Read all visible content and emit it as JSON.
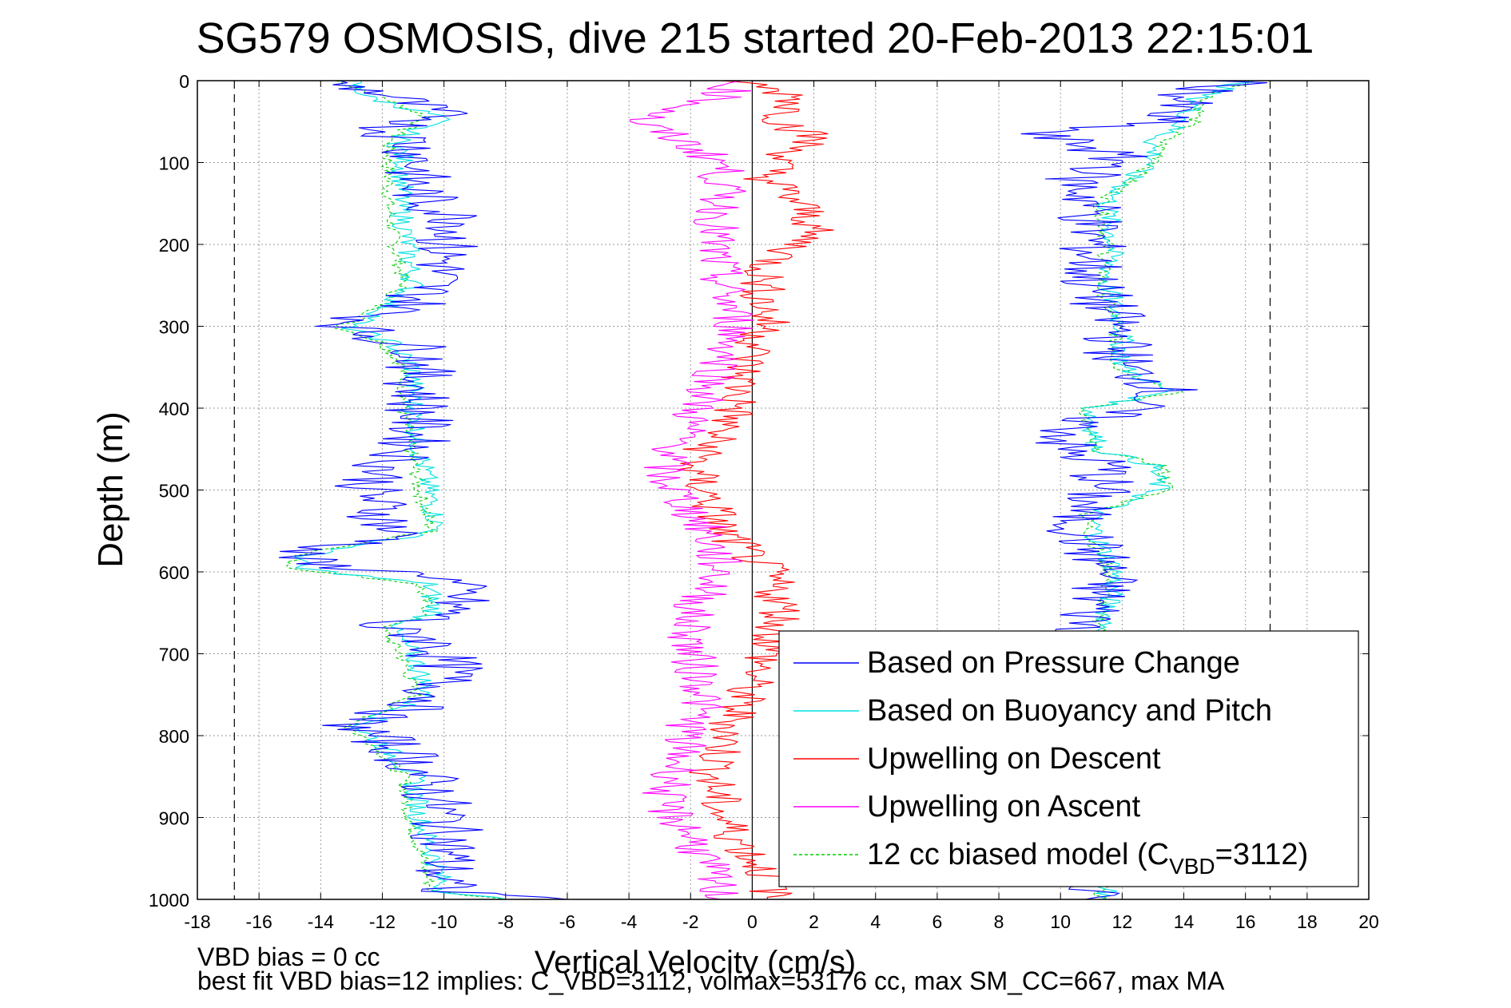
{
  "chart_data": {
    "type": "line",
    "title": "SG579 OSMOSIS, dive 215 started 20-Feb-2013 22:15:01",
    "xlabel": "Vertical Velocity (cm/s)",
    "ylabel": "Depth (m)",
    "xlim": [
      -18,
      20
    ],
    "ylim": [
      0,
      1000
    ],
    "y_reversed": true,
    "grid": true,
    "legend_position": "bottom-right",
    "x_ticks": [
      "-18",
      "-16",
      "-14",
      "-12",
      "-10",
      "-8",
      "-6",
      "-4",
      "-2",
      "0",
      "2",
      "4",
      "6",
      "8",
      "10",
      "12",
      "14",
      "16",
      "18",
      "20"
    ],
    "y_ticks": [
      "0",
      "100",
      "200",
      "300",
      "400",
      "500",
      "600",
      "700",
      "800",
      "900",
      "1000"
    ],
    "reference_lines": {
      "x_zero": 0,
      "dashed_limits": [
        -16.8,
        16.8
      ]
    },
    "series": [
      {
        "name": "Based on Pressure Change",
        "color": "#0000ff",
        "style": "solid",
        "descent": [
          [
            0,
            -14
          ],
          [
            15,
            -12
          ],
          [
            30,
            -11
          ],
          [
            45,
            -10
          ],
          [
            60,
            -12
          ],
          [
            75,
            -11
          ],
          [
            100,
            -10.8
          ],
          [
            125,
            -11
          ],
          [
            150,
            -10.5
          ],
          [
            175,
            -9.3
          ],
          [
            200,
            -10
          ],
          [
            225,
            -10
          ],
          [
            250,
            -10.5
          ],
          [
            275,
            -11
          ],
          [
            290,
            -12.5
          ],
          [
            300,
            -13
          ],
          [
            315,
            -12
          ],
          [
            330,
            -10.5
          ],
          [
            350,
            -10.8
          ],
          [
            400,
            -10.8
          ],
          [
            450,
            -11
          ],
          [
            470,
            -11.8
          ],
          [
            500,
            -12.5
          ],
          [
            530,
            -12
          ],
          [
            560,
            -11.5
          ],
          [
            575,
            -14.8
          ],
          [
            590,
            -14.5
          ],
          [
            605,
            -10
          ],
          [
            630,
            -9.5
          ],
          [
            655,
            -10
          ],
          [
            665,
            -12.5
          ],
          [
            680,
            -10.5
          ],
          [
            720,
            -9.8
          ],
          [
            760,
            -10.5
          ],
          [
            785,
            -13
          ],
          [
            800,
            -12.3
          ],
          [
            820,
            -11.3
          ],
          [
            860,
            -10.5
          ],
          [
            900,
            -10
          ],
          [
            940,
            -9.8
          ],
          [
            970,
            -10.1
          ],
          [
            990,
            -10
          ],
          [
            1000,
            -6
          ]
        ],
        "ascent": [
          [
            0,
            15.8
          ],
          [
            20,
            14
          ],
          [
            50,
            13
          ],
          [
            65,
            9
          ],
          [
            80,
            11
          ],
          [
            100,
            12
          ],
          [
            120,
            10.5
          ],
          [
            150,
            11
          ],
          [
            200,
            11
          ],
          [
            250,
            11
          ],
          [
            300,
            11.8
          ],
          [
            350,
            12
          ],
          [
            375,
            13.5
          ],
          [
            395,
            12.5
          ],
          [
            420,
            10.5
          ],
          [
            450,
            10
          ],
          [
            470,
            11.5
          ],
          [
            500,
            11.2
          ],
          [
            530,
            10.5
          ],
          [
            560,
            10.8
          ],
          [
            600,
            11.5
          ],
          [
            650,
            11
          ],
          [
            700,
            10.8
          ],
          [
            1000,
            10.8
          ]
        ]
      },
      {
        "name": "Based on Buoyancy and Pitch",
        "color": "#00e0e0",
        "style": "solid",
        "descent": [
          [
            0,
            -13
          ],
          [
            20,
            -12.5
          ],
          [
            45,
            -10
          ],
          [
            60,
            -11
          ],
          [
            75,
            -11.5
          ],
          [
            100,
            -11.3
          ],
          [
            150,
            -11.4
          ],
          [
            200,
            -11.2
          ],
          [
            250,
            -11
          ],
          [
            290,
            -12.3
          ],
          [
            300,
            -13.2
          ],
          [
            320,
            -11.7
          ],
          [
            350,
            -11
          ],
          [
            400,
            -11
          ],
          [
            450,
            -10.8
          ],
          [
            500,
            -10.5
          ],
          [
            550,
            -10.2
          ],
          [
            580,
            -14.5
          ],
          [
            595,
            -14.8
          ],
          [
            615,
            -10.5
          ],
          [
            650,
            -10.3
          ],
          [
            670,
            -11.7
          ],
          [
            700,
            -11
          ],
          [
            750,
            -10.5
          ],
          [
            790,
            -12.8
          ],
          [
            810,
            -12
          ],
          [
            850,
            -11
          ],
          [
            900,
            -10.8
          ],
          [
            950,
            -10.3
          ],
          [
            990,
            -10
          ],
          [
            1000,
            -8
          ]
        ],
        "ascent": [
          [
            0,
            16
          ],
          [
            20,
            14.5
          ],
          [
            50,
            14
          ],
          [
            75,
            13
          ],
          [
            100,
            13
          ],
          [
            110,
            12.5
          ],
          [
            150,
            11.5
          ],
          [
            200,
            11.7
          ],
          [
            250,
            11.5
          ],
          [
            300,
            12
          ],
          [
            350,
            12
          ],
          [
            380,
            13.5
          ],
          [
            400,
            11
          ],
          [
            450,
            11.2
          ],
          [
            470,
            13
          ],
          [
            500,
            13.2
          ],
          [
            530,
            11
          ],
          [
            560,
            11.2
          ],
          [
            600,
            11.8
          ],
          [
            650,
            11.5
          ],
          [
            700,
            11.5
          ],
          [
            1000,
            11.5
          ]
        ]
      },
      {
        "name": "Upwelling on Descent",
        "color": "#ff0000",
        "style": "solid",
        "descent": [
          [
            0,
            -0.5
          ],
          [
            20,
            1.5
          ],
          [
            50,
            1
          ],
          [
            70,
            2
          ],
          [
            100,
            0.8
          ],
          [
            120,
            0.5
          ],
          [
            150,
            1.5
          ],
          [
            175,
            2
          ],
          [
            200,
            1.5
          ],
          [
            225,
            0.5
          ],
          [
            250,
            0.3
          ],
          [
            300,
            0.5
          ],
          [
            350,
            -0.3
          ],
          [
            400,
            -0.5
          ],
          [
            450,
            -1.5
          ],
          [
            475,
            -2
          ],
          [
            500,
            -1.5
          ],
          [
            550,
            -1
          ],
          [
            600,
            0.5
          ],
          [
            650,
            1
          ],
          [
            700,
            0.5
          ],
          [
            750,
            -0.3
          ],
          [
            800,
            -0.8
          ],
          [
            850,
            -1.3
          ],
          [
            900,
            -1
          ],
          [
            950,
            0
          ],
          [
            980,
            0.8
          ],
          [
            1000,
            0.5
          ]
        ]
      },
      {
        "name": "Upwelling on Ascent",
        "color": "#ff00ff",
        "style": "solid",
        "ascent": [
          [
            0,
            -0.5
          ],
          [
            20,
            -1
          ],
          [
            50,
            -3.8
          ],
          [
            70,
            -2.5
          ],
          [
            100,
            -1
          ],
          [
            150,
            -1
          ],
          [
            200,
            -1.3
          ],
          [
            250,
            -1
          ],
          [
            300,
            -0.5
          ],
          [
            350,
            -1
          ],
          [
            400,
            -1.8
          ],
          [
            450,
            -2.5
          ],
          [
            480,
            -3
          ],
          [
            500,
            -2.5
          ],
          [
            550,
            -1.5
          ],
          [
            600,
            -1
          ],
          [
            650,
            -2
          ],
          [
            700,
            -2
          ],
          [
            750,
            -1.5
          ],
          [
            800,
            -2.2
          ],
          [
            850,
            -2.5
          ],
          [
            880,
            -3
          ],
          [
            920,
            -2
          ],
          [
            960,
            -1.5
          ],
          [
            1000,
            -1
          ]
        ]
      },
      {
        "name": "12 cc biased model",
        "subscript": "VBD",
        "subscript_prefix": "C",
        "subscript_value": "3112",
        "color": "#00cc00",
        "style": "dashed",
        "descent": [
          [
            0,
            -13.5
          ],
          [
            20,
            -12
          ],
          [
            45,
            -10.5
          ],
          [
            60,
            -11.3
          ],
          [
            75,
            -11.8
          ],
          [
            100,
            -11.8
          ],
          [
            150,
            -11.8
          ],
          [
            200,
            -11.6
          ],
          [
            250,
            -11.3
          ],
          [
            290,
            -12.6
          ],
          [
            300,
            -13.5
          ],
          [
            320,
            -12
          ],
          [
            350,
            -11.3
          ],
          [
            400,
            -11.3
          ],
          [
            450,
            -11.1
          ],
          [
            500,
            -10.8
          ],
          [
            550,
            -10.4
          ],
          [
            580,
            -14.8
          ],
          [
            595,
            -15
          ],
          [
            615,
            -10.8
          ],
          [
            650,
            -10.5
          ],
          [
            670,
            -12
          ],
          [
            700,
            -11.4
          ],
          [
            750,
            -10.9
          ],
          [
            790,
            -13.1
          ],
          [
            810,
            -12.3
          ],
          [
            850,
            -11.3
          ],
          [
            900,
            -11.1
          ],
          [
            950,
            -10.7
          ],
          [
            990,
            -10.4
          ],
          [
            1000,
            -8
          ]
        ],
        "ascent": [
          [
            0,
            16.3
          ],
          [
            20,
            14.8
          ],
          [
            50,
            14.3
          ],
          [
            75,
            13.3
          ],
          [
            100,
            13.2
          ],
          [
            110,
            12.7
          ],
          [
            150,
            11.3
          ],
          [
            200,
            11.5
          ],
          [
            250,
            11.3
          ],
          [
            300,
            11.8
          ],
          [
            350,
            11.8
          ],
          [
            380,
            13.8
          ],
          [
            400,
            10.8
          ],
          [
            450,
            11
          ],
          [
            470,
            13.3
          ],
          [
            500,
            13.5
          ],
          [
            530,
            10.8
          ],
          [
            560,
            11
          ],
          [
            600,
            11.6
          ],
          [
            650,
            11.3
          ],
          [
            700,
            11.3
          ],
          [
            1000,
            11.3
          ]
        ]
      }
    ],
    "annotations": [
      "VBD bias = 0 cc",
      "best fit VBD bias=12 implies: C_VBD=3112, volmax=53176 cc, max SM_CC=667, max MA"
    ]
  }
}
